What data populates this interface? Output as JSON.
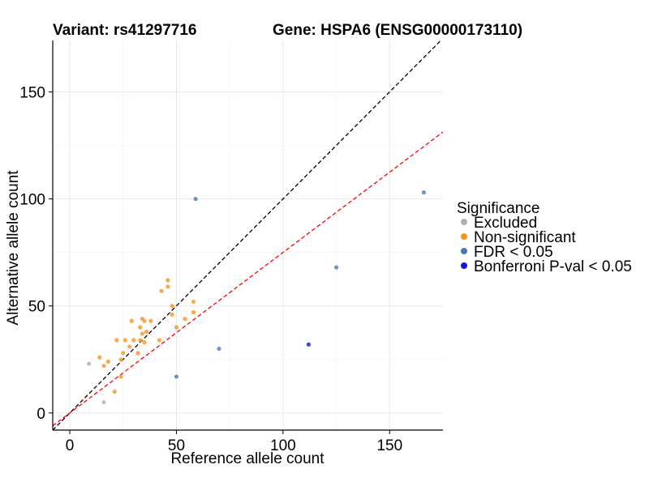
{
  "chart_data": {
    "type": "scatter",
    "title_left": "Variant: rs41297716",
    "title_right": "Gene: HSPA6 (ENSG00000173110)",
    "xlabel": "Reference allele count",
    "ylabel": "Alternative allele count",
    "xlim": [
      -8,
      175
    ],
    "ylim": [
      -8,
      174
    ],
    "xticks": [
      0,
      50,
      100,
      150
    ],
    "yticks": [
      0,
      50,
      100,
      150
    ],
    "grid": true,
    "legend_position": "right",
    "legend_title": "Significance",
    "reference_lines": [
      {
        "name": "identity",
        "slope": 1.0,
        "intercept": 0,
        "color": "#000000",
        "style": "dashed"
      },
      {
        "name": "fit",
        "slope": 0.75,
        "intercept": 0,
        "color": "#ff0000",
        "style": "dashed"
      }
    ],
    "series": [
      {
        "name": "Excluded",
        "color": "#b0b0b0",
        "points": [
          [
            9,
            23
          ],
          [
            16,
            5
          ]
        ]
      },
      {
        "name": "Non-significant",
        "color": "#f7941d",
        "points": [
          [
            14,
            26
          ],
          [
            16,
            22
          ],
          [
            18,
            24
          ],
          [
            21,
            10
          ],
          [
            22,
            34
          ],
          [
            24,
            17
          ],
          [
            24,
            25
          ],
          [
            25,
            28
          ],
          [
            26,
            34
          ],
          [
            28,
            31
          ],
          [
            29,
            43
          ],
          [
            30,
            34
          ],
          [
            32,
            28
          ],
          [
            33,
            34
          ],
          [
            33,
            40
          ],
          [
            34,
            44
          ],
          [
            34,
            37
          ],
          [
            35,
            33
          ],
          [
            35,
            43
          ],
          [
            36,
            38
          ],
          [
            38,
            43
          ],
          [
            42,
            34
          ],
          [
            43,
            57
          ],
          [
            46,
            62
          ],
          [
            46,
            59
          ],
          [
            48,
            50
          ],
          [
            48,
            46
          ],
          [
            50,
            40
          ],
          [
            54,
            44
          ],
          [
            58,
            52
          ],
          [
            58,
            47
          ]
        ]
      },
      {
        "name": "FDR < 0.05",
        "color": "#4a7ab5",
        "points": [
          [
            59,
            100
          ],
          [
            166,
            103
          ],
          [
            125,
            68
          ],
          [
            70,
            30
          ],
          [
            50,
            17
          ]
        ]
      },
      {
        "name": "Bonferroni P-val < 0.05",
        "color": "#1515e0",
        "points": [
          [
            112,
            32
          ]
        ]
      }
    ]
  }
}
